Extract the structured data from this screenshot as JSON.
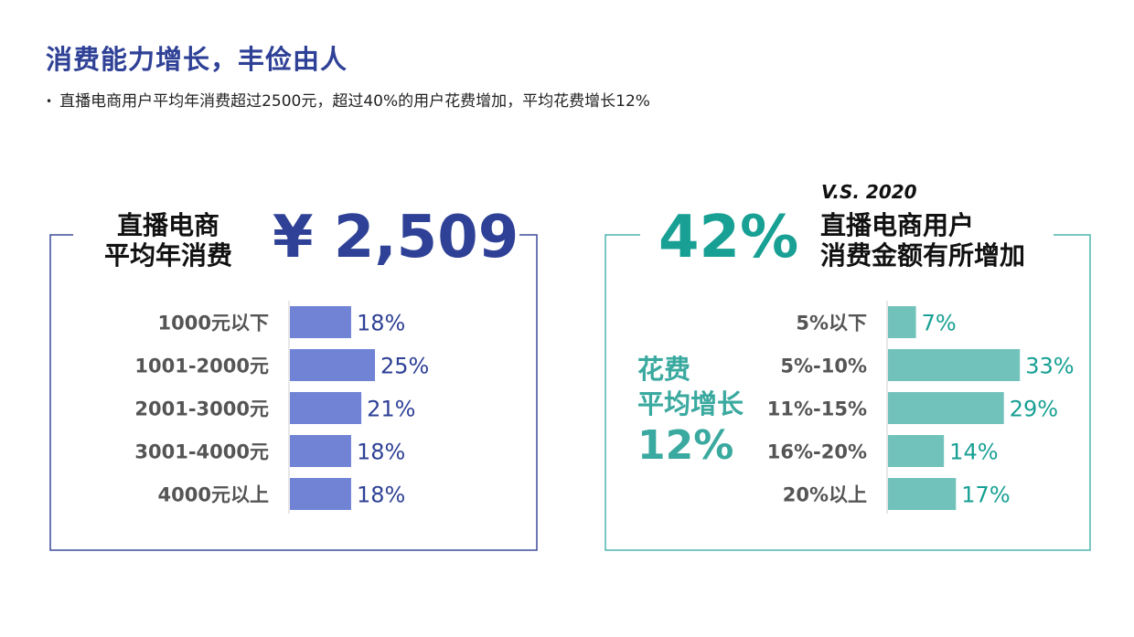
{
  "title": "消费能力增长，丰俭由人",
  "subtitle": "直播电商用户平均年消费超过2500元，超过40%的用户花费增加，平均花费增长12%",
  "colors": {
    "left_accent": "#2f4196",
    "left_bar": "#7083d5",
    "left_frame": "#3b4a9a",
    "right_accent": "#18a094",
    "right_bar": "#72c2bc",
    "right_frame": "#4fb6ad",
    "category_text": "#555555"
  },
  "left_panel": {
    "heading_line1": "直播电商",
    "heading_line2": "平均年消费",
    "value": "¥ 2,509"
  },
  "right_panel": {
    "comparison": "V.S. 2020",
    "value": "42%",
    "heading_line1": "直播电商用户",
    "heading_line2": "消费金额有所增加",
    "growth_line1": "花费",
    "growth_line2": "平均增长",
    "growth_value": "12%"
  },
  "chart_data": [
    {
      "type": "bar",
      "orientation": "horizontal",
      "categories": [
        "1000元以下",
        "1001-2000元",
        "2001-3000元",
        "3001-4000元",
        "4000元以上"
      ],
      "values": [
        18,
        25,
        21,
        18,
        18
      ],
      "value_labels": [
        "18%",
        "25%",
        "21%",
        "18%",
        "18%"
      ]
    },
    {
      "type": "bar",
      "orientation": "horizontal",
      "categories": [
        "5%以下",
        "5%-10%",
        "11%-15%",
        "16%-20%",
        "20%以上"
      ],
      "values": [
        7,
        33,
        29,
        14,
        17
      ],
      "value_labels": [
        "7%",
        "33%",
        "29%",
        "14%",
        "17%"
      ]
    }
  ]
}
